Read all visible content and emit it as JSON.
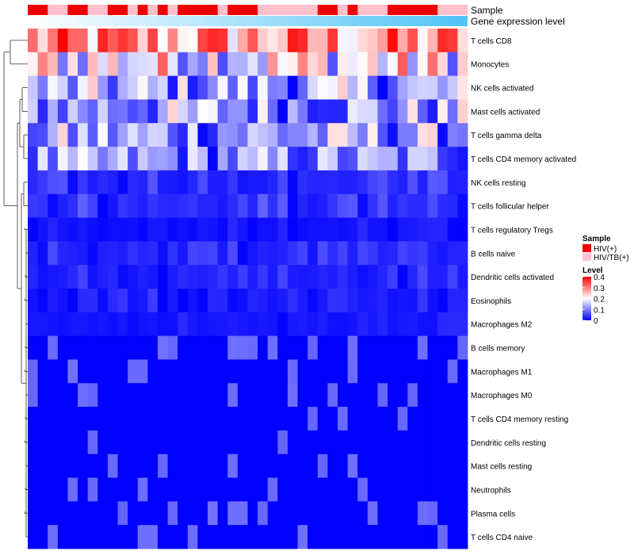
{
  "chart_data": {
    "type": "heatmap",
    "title": "",
    "annotations": {
      "sample_label": "Sample",
      "expression_label": "Gene expression level"
    },
    "rows": [
      "T cells CD8",
      "Monocytes",
      "NK cells activated",
      "Mast cells activated",
      "T cells gamma delta",
      "T cells CD4 memory activated",
      "NK cells resting",
      "T cells follicular helper",
      "T cells regulatory  Tregs",
      "B cells naive",
      "Dendritic cells activated",
      "Eosinophils",
      "Macrophages M2",
      "B cells memory",
      "Macrophages M1",
      "Macrophages M0",
      "T cells CD4 memory resting",
      "Dendritic cells resting",
      "Mast cells resting",
      "Neutrophils",
      "Plasma cells",
      "T cells CD4 naive"
    ],
    "columns": 44,
    "sample_groups": [
      "HIV(+)",
      "HIV(+)",
      "HIV/TB(+)",
      "HIV/TB(+)",
      "HIV(+)",
      "HIV(+)",
      "HIV/TB(+)",
      "HIV/TB(+)",
      "HIV(+)",
      "HIV(+)",
      "HIV/TB(+)",
      "HIV(+)",
      "HIV/TB(+)",
      "HIV(+)",
      "HIV/TB(+)",
      "HIV(+)",
      "HIV(+)",
      "HIV(+)",
      "HIV(+)",
      "HIV/TB(+)",
      "HIV(+)",
      "HIV(+)",
      "HIV(+)",
      "HIV/TB(+)",
      "HIV/TB(+)",
      "HIV/TB(+)",
      "HIV/TB(+)",
      "HIV/TB(+)",
      "HIV/TB(+)",
      "HIV(+)",
      "HIV(+)",
      "HIV/TB(+)",
      "HIV(+)",
      "HIV/TB(+)",
      "HIV/TB(+)",
      "HIV/TB(+)",
      "HIV(+)",
      "HIV(+)",
      "HIV(+)",
      "HIV(+)",
      "HIV(+)",
      "HIV/TB(+)",
      "HIV/TB(+)",
      "HIV/TB(+)"
    ],
    "legend": {
      "sample": {
        "title": "Sample",
        "entries": [
          {
            "label": "HIV(+)",
            "color": "#ee0000"
          },
          {
            "label": "HIV/TB(+)",
            "color": "#ffc0cb"
          }
        ]
      },
      "level": {
        "title": "Level",
        "ticks": [
          "0.4",
          "0.3",
          "0.2",
          "0.1",
          "0"
        ],
        "range": [
          0,
          0.4
        ],
        "colors": {
          "low": "#0000ff",
          "mid": "#ffffff",
          "high": "#ff0000"
        }
      },
      "placement": "right"
    },
    "base_levels": [
      0.32,
      0.16,
      0.12,
      0.12,
      0.12,
      0.1,
      0.06,
      0.07,
      0.03,
      0.05,
      0.05,
      0.04,
      0.035,
      0.025,
      0.012,
      0.012,
      0.01,
      0.006,
      0.004,
      0.002,
      0.01,
      0.002
    ],
    "value_range": [
      0,
      0.4
    ],
    "note": "Cell values are 22 x 44 estimated relative fractions (0-0.4) derived from base_levels per row"
  }
}
